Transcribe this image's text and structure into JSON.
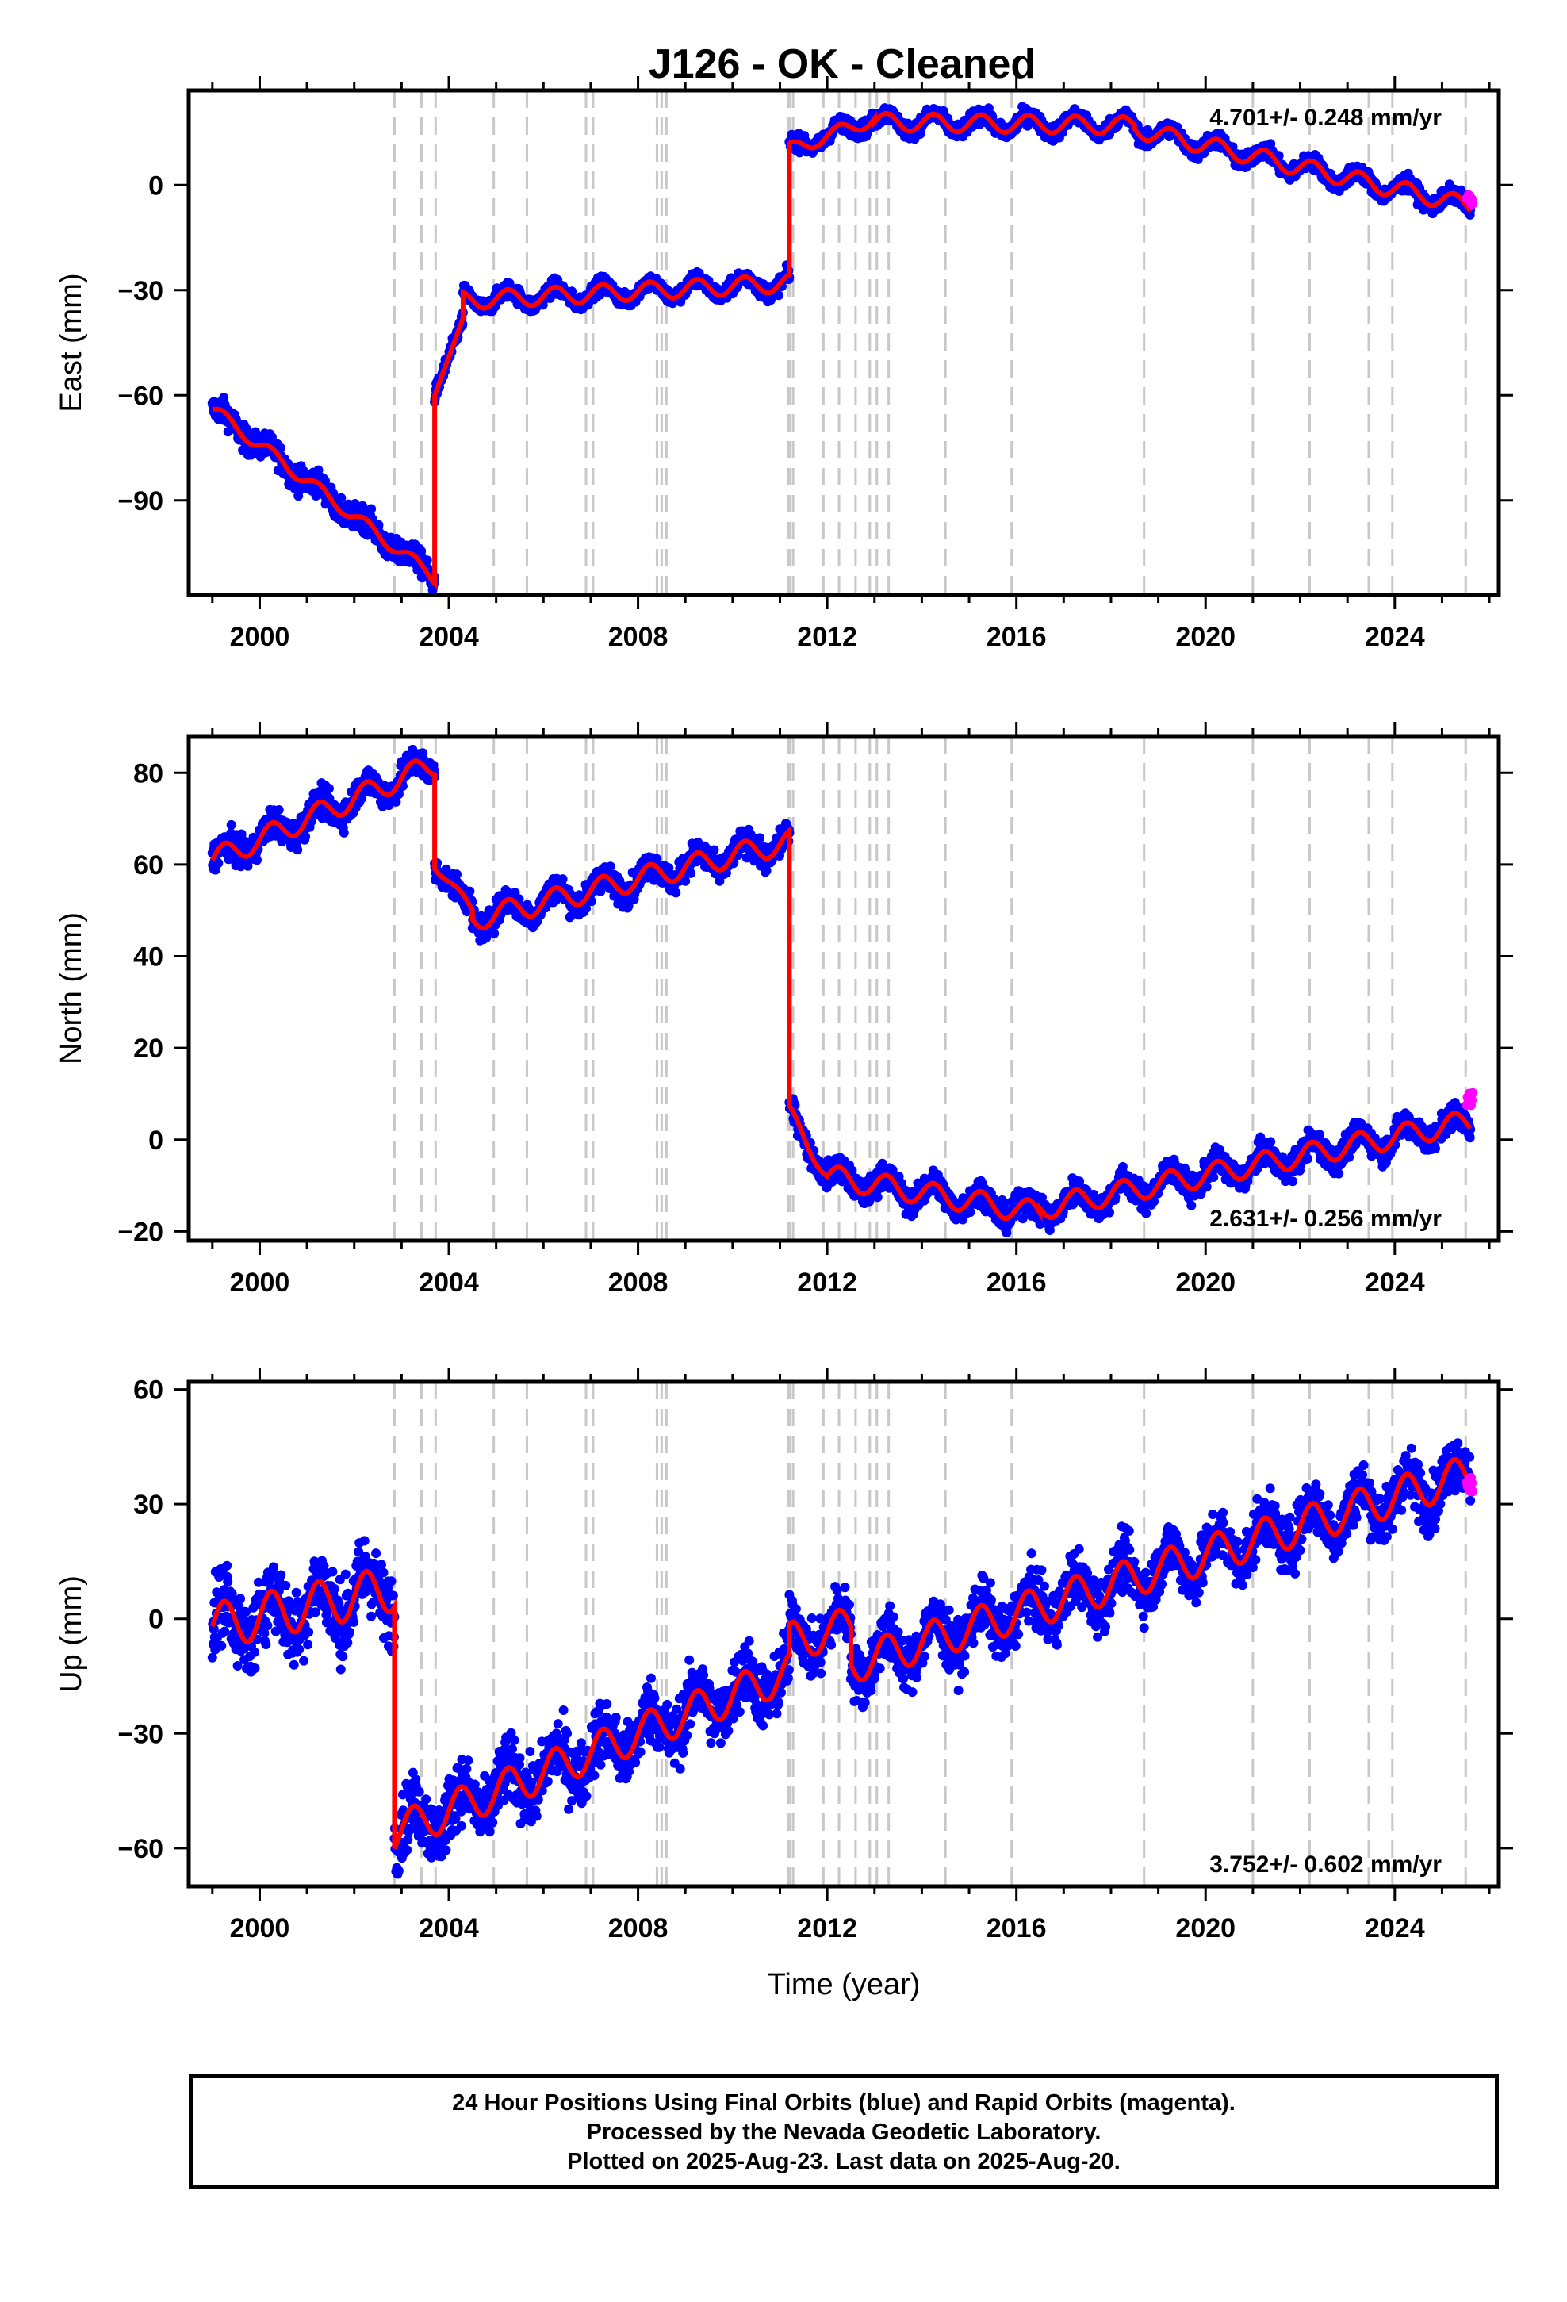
{
  "title": "J126  - OK - Cleaned",
  "colors": {
    "final": "#0000ff",
    "rapid": "#ff00ff",
    "model": "#ff0000",
    "event": "#c8c8c8"
  },
  "events": [
    2002.85,
    2003.42,
    2003.72,
    2004.95,
    2005.65,
    2006.9,
    2007.05,
    2008.4,
    2008.5,
    2008.6,
    2011.17,
    2011.22,
    2011.28,
    2011.92,
    2012.25,
    2012.6,
    2012.9,
    2013.05,
    2013.3,
    2014.5,
    2015.9,
    2018.7,
    2021.0,
    2022.2,
    2023.45,
    2023.95,
    2025.5
  ],
  "chart_data": [
    {
      "type": "scatter",
      "component": "East",
      "ylabel": "East (mm)",
      "xlabel": "",
      "xlim": [
        1998.5,
        2026.2
      ],
      "ylim": [
        -117,
        27
      ],
      "xticks": [
        "2000",
        "2004",
        "2008",
        "2012",
        "2016",
        "2020",
        "2024"
      ],
      "yticks": [
        "0",
        "-30",
        "-60",
        "-90"
      ],
      "rate_text": "4.701+/- 0.248 mm/yr",
      "rate_position": "top-right",
      "segments": [
        {
          "x0": 1999.0,
          "x1": 2003.7,
          "y0": -64,
          "y1": -112,
          "amp": 1.8,
          "scatter": 2.5
        },
        {
          "x0": 2003.7,
          "x1": 2004.3,
          "y0": -60,
          "y1": -38,
          "amp": 0,
          "scatter": 1.5
        },
        {
          "x0": 2004.3,
          "x1": 2011.2,
          "y0": -33,
          "y1": -28,
          "amp": 2.5,
          "scatter": 1.6
        },
        {
          "x0": 2011.2,
          "x1": 2013.0,
          "y0": 10,
          "y1": 19,
          "amp": 2.0,
          "scatter": 1.6
        },
        {
          "x0": 2013.0,
          "x1": 2018.5,
          "y0": 18,
          "y1": 17,
          "amp": 2.5,
          "scatter": 1.6
        },
        {
          "x0": 2018.5,
          "x1": 2025.6,
          "y0": 16,
          "y1": -6,
          "amp": 2.5,
          "scatter": 1.6
        }
      ],
      "rapid": {
        "x0": 2025.52,
        "x1": 2025.65,
        "y": -4,
        "spread": 3
      }
    },
    {
      "type": "scatter",
      "component": "North",
      "ylabel": "North (mm)",
      "xlabel": "",
      "xlim": [
        1998.5,
        2026.2
      ],
      "ylim": [
        -22,
        88
      ],
      "xticks": [
        "2000",
        "2004",
        "2008",
        "2012",
        "2016",
        "2020",
        "2024"
      ],
      "yticks": [
        "80",
        "60",
        "40",
        "20",
        "0",
        "-20"
      ],
      "rate_text": "2.631+/- 0.256 mm/yr",
      "rate_position": "bottom-right",
      "segments": [
        {
          "x0": 1999.0,
          "x1": 2003.7,
          "y0": 61,
          "y1": 82,
          "amp": 2.5,
          "scatter": 2.2
        },
        {
          "x0": 2003.7,
          "x1": 2004.5,
          "y0": 60,
          "y1": 50,
          "amp": 1.0,
          "scatter": 1.8
        },
        {
          "x0": 2004.5,
          "x1": 2011.2,
          "y0": 48,
          "y1": 65,
          "amp": 2.5,
          "scatter": 2.0
        },
        {
          "x0": 2011.2,
          "x1": 2012.0,
          "y0": 6,
          "y1": -8,
          "amp": 1.5,
          "scatter": 1.8
        },
        {
          "x0": 2012.0,
          "x1": 2016.5,
          "y0": -8,
          "y1": -16,
          "amp": 2.5,
          "scatter": 2.0
        },
        {
          "x0": 2016.5,
          "x1": 2025.6,
          "y0": -15,
          "y1": 4,
          "amp": 2.5,
          "scatter": 2.0
        }
      ],
      "rapid": {
        "x0": 2025.52,
        "x1": 2025.65,
        "y": 9,
        "spread": 3
      }
    },
    {
      "type": "scatter",
      "component": "Up",
      "ylabel": "Up (mm)",
      "xlabel": "Time (year)",
      "xlim": [
        1998.5,
        2026.2
      ],
      "ylim": [
        -70,
        62
      ],
      "xticks": [
        "2000",
        "2004",
        "2008",
        "2012",
        "2016",
        "2020",
        "2024"
      ],
      "yticks": [
        "60",
        "30",
        "0",
        "-30",
        "-60"
      ],
      "rate_text": "3.752+/- 0.602 mm/yr",
      "rate_position": "bottom-right",
      "segments": [
        {
          "x0": 1999.0,
          "x1": 2002.85,
          "y0": -2,
          "y1": 8,
          "amp": 6,
          "scatter": 7
        },
        {
          "x0": 2002.85,
          "x1": 2011.2,
          "y0": -56,
          "y1": -14,
          "amp": 5,
          "scatter": 6
        },
        {
          "x0": 2011.2,
          "x1": 2012.5,
          "y0": -6,
          "y1": -2,
          "amp": 5,
          "scatter": 5
        },
        {
          "x0": 2012.5,
          "x1": 2025.6,
          "y0": -12,
          "y1": 38,
          "amp": 5,
          "scatter": 5
        }
      ],
      "rapid": {
        "x0": 2025.52,
        "x1": 2025.65,
        "y": 36,
        "spread": 6
      }
    }
  ],
  "footer": {
    "line1": "24 Hour Positions Using Final Orbits (blue) and Rapid Orbits (magenta).",
    "line2": "Processed by the Nevada Geodetic Laboratory.",
    "line3": "Plotted on 2025-Aug-23. Last data on 2025-Aug-20."
  }
}
